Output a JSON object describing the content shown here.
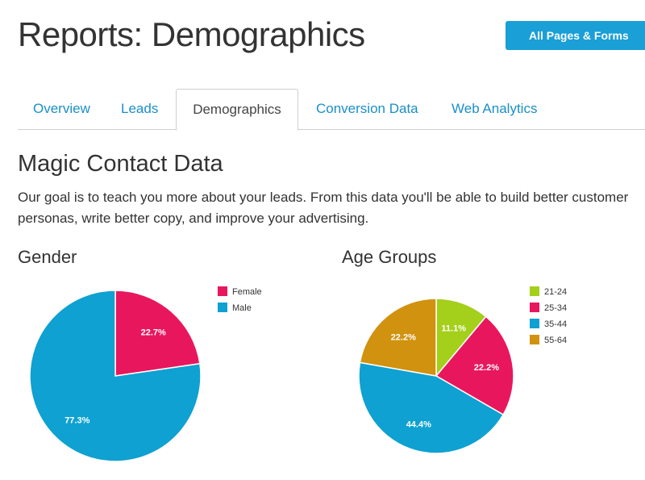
{
  "header": {
    "title": "Reports: Demographics",
    "primary_button": "All Pages & Forms"
  },
  "tabs": [
    {
      "label": "Overview",
      "active": false
    },
    {
      "label": "Leads",
      "active": false
    },
    {
      "label": "Demographics",
      "active": true
    },
    {
      "label": "Conversion Data",
      "active": false
    },
    {
      "label": "Web Analytics",
      "active": false
    }
  ],
  "section": {
    "title": "Magic Contact Data",
    "description": "Our goal is to teach you more about your leads. From this data you'll be able to build better customer personas, write better copy, and improve your advertising."
  },
  "colors": {
    "accent": "#1a9fd6",
    "link": "#1a8fc7"
  },
  "chart_data": [
    {
      "type": "pie",
      "title": "Gender",
      "legend_position": "top-right",
      "slices": [
        {
          "label": "Female",
          "value": 22.7,
          "display": "22.7%",
          "color": "#e8175d"
        },
        {
          "label": "Male",
          "value": 77.3,
          "display": "77.3%",
          "color": "#0ea1d1"
        }
      ]
    },
    {
      "type": "pie",
      "title": "Age Groups",
      "legend_position": "top-right",
      "slices": [
        {
          "label": "21-24",
          "value": 11.1,
          "display": "11.1%",
          "color": "#a4cf1a"
        },
        {
          "label": "25-34",
          "value": 22.2,
          "display": "22.2%",
          "color": "#e8175d"
        },
        {
          "label": "35-44",
          "value": 44.4,
          "display": "44.4%",
          "color": "#0ea1d1"
        },
        {
          "label": "55-64",
          "value": 22.2,
          "display": "22.2%",
          "color": "#d1920f"
        }
      ]
    }
  ]
}
